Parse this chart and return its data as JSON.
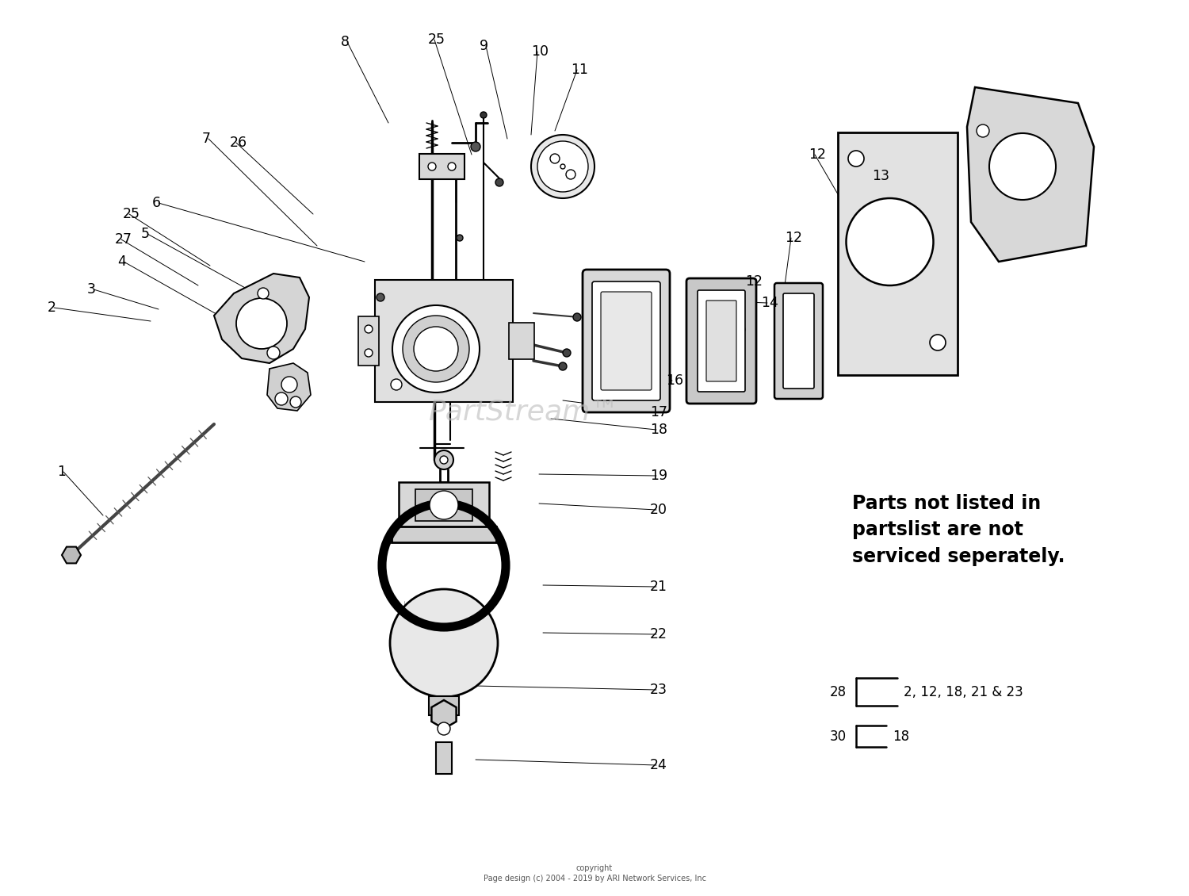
{
  "bg_color": "#ffffff",
  "line_color": "#000000",
  "text_color": "#000000",
  "watermark": "PartStream™",
  "watermark_color": "#bbbbbb",
  "note_text": "Parts not listed in\npartslist are not\nserviced seperately.",
  "copyright_text": "copyright\nPage design (c) 2004 - 2019 by ARI Network Services, Inc",
  "kit_label_28": "28",
  "kit_label_30": "30",
  "kit_text_28": "2, 12, 18, 21 & 23",
  "kit_text_30": "18",
  "fig_width": 15.0,
  "fig_height": 11.3,
  "dpi": 100
}
